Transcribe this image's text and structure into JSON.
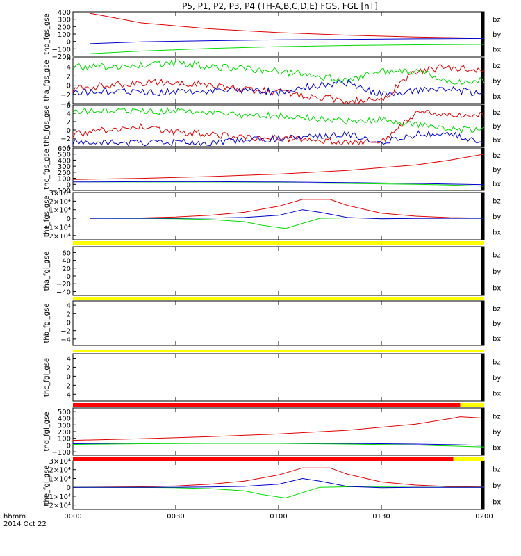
{
  "title": "P5, P1, P2, P3, P4 (TH-A,B,C,D,E) FGS, FGL [nT]",
  "colors": {
    "bz": "#e00000",
    "by": "#00dd00",
    "bx": "#0000cc",
    "flag_yellow": "#ffff00",
    "flag_red": "#ff0000"
  },
  "legend": [
    "bz",
    "by",
    "bx"
  ],
  "x_axis": {
    "label_line1": "hhmm",
    "label_line2": "2014 Oct 22",
    "ticks": [
      "0000",
      "0030",
      "0100",
      "0130",
      "0200"
    ],
    "tick_minutes": [
      0,
      30,
      60,
      90,
      120
    ],
    "range_minutes": [
      0,
      120
    ]
  },
  "chart_data": [
    {
      "type": "line",
      "ylabel": "thd_fgs_gse",
      "ylim": [
        -200,
        400
      ],
      "ticks": [
        "400",
        "300",
        "200",
        "100",
        "0",
        "−100",
        "−200"
      ],
      "tick_values": [
        400,
        300,
        200,
        100,
        0,
        -100,
        -200
      ],
      "series": [
        {
          "name": "bz",
          "x": [
            5,
            20,
            40,
            60,
            80,
            100,
            120
          ],
          "y": [
            380,
            250,
            170,
            120,
            85,
            60,
            45
          ]
        },
        {
          "name": "by",
          "x": [
            5,
            20,
            40,
            60,
            80,
            100,
            120
          ],
          "y": [
            -165,
            -130,
            -95,
            -70,
            -55,
            -45,
            -40
          ]
        },
        {
          "name": "bx",
          "x": [
            5,
            20,
            40,
            60,
            80,
            100,
            120
          ],
          "y": [
            -30,
            -5,
            10,
            22,
            28,
            35,
            40
          ]
        }
      ]
    },
    {
      "type": "line",
      "ylabel": "tha_fgs_gse",
      "ylim": [
        -4,
        6
      ],
      "ticks": [
        "6",
        "4",
        "2",
        "0",
        "−2",
        "−4"
      ],
      "tick_values": [
        6,
        4,
        2,
        0,
        -2,
        -4
      ],
      "series": [
        {
          "name": "bz",
          "x": [
            0,
            10,
            20,
            30,
            40,
            50,
            60,
            70,
            80,
            90,
            100,
            110,
            120
          ],
          "y": [
            -1,
            0,
            0.5,
            0.5,
            0,
            -1,
            -1.5,
            -2.5,
            -3.5,
            -3,
            3,
            4,
            3
          ]
        },
        {
          "name": "by",
          "x": [
            0,
            10,
            20,
            30,
            40,
            50,
            60,
            70,
            80,
            90,
            100,
            110,
            120
          ],
          "y": [
            4,
            4,
            4.5,
            5,
            4,
            3.5,
            3,
            2,
            1,
            3,
            3,
            1,
            1
          ]
        },
        {
          "name": "bx",
          "x": [
            0,
            10,
            20,
            30,
            40,
            50,
            60,
            70,
            80,
            90,
            100,
            110,
            120
          ],
          "y": [
            -1.5,
            -1.5,
            -1.5,
            -1.5,
            -1.5,
            -1,
            -1.5,
            0,
            0.5,
            -2,
            -1,
            -1,
            -2
          ]
        }
      ]
    },
    {
      "type": "line",
      "ylabel": "thb_fgs_gse",
      "ylim": [
        -4,
        6
      ],
      "ticks": [
        "6",
        "4",
        "2",
        "0",
        "−2",
        "−4"
      ],
      "tick_values": [
        6,
        4,
        2,
        0,
        -2,
        -4
      ],
      "series": [
        {
          "name": "bz",
          "x": [
            0,
            10,
            20,
            30,
            40,
            50,
            60,
            70,
            80,
            90,
            100,
            110,
            120
          ],
          "y": [
            -1,
            0,
            1,
            -0.5,
            -1,
            -2,
            -2,
            -2.5,
            -3,
            -3,
            4,
            4,
            3.5
          ]
        },
        {
          "name": "by",
          "x": [
            0,
            10,
            20,
            30,
            40,
            50,
            60,
            70,
            80,
            90,
            100,
            110,
            120
          ],
          "y": [
            4.5,
            4.5,
            4.5,
            4.5,
            4,
            3.5,
            3.5,
            3,
            2,
            2.5,
            1.5,
            0,
            0
          ]
        },
        {
          "name": "bx",
          "x": [
            0,
            10,
            20,
            30,
            40,
            50,
            60,
            70,
            80,
            90,
            100,
            110,
            120
          ],
          "y": [
            -3,
            -3,
            -3,
            -3,
            -3,
            -2.5,
            -2,
            -1.5,
            -1,
            -3,
            -1,
            -1,
            -3
          ]
        }
      ]
    },
    {
      "type": "line",
      "ylabel": "thc_fgs_gse",
      "ylim": [
        -100,
        600
      ],
      "ticks": [
        "600",
        "500",
        "400",
        "300",
        "200",
        "100",
        "0",
        "−100"
      ],
      "tick_values": [
        600,
        500,
        400,
        300,
        200,
        100,
        0,
        -100
      ],
      "series": [
        {
          "name": "bz",
          "x": [
            0,
            20,
            40,
            60,
            80,
            100,
            110,
            120
          ],
          "y": [
            80,
            100,
            130,
            170,
            230,
            320,
            400,
            500
          ]
        },
        {
          "name": "by",
          "x": [
            0,
            20,
            40,
            60,
            80,
            100,
            110,
            120
          ],
          "y": [
            20,
            25,
            25,
            25,
            15,
            0,
            -10,
            -30
          ]
        },
        {
          "name": "bx",
          "x": [
            0,
            20,
            40,
            60,
            80,
            100,
            110,
            120
          ],
          "y": [
            40,
            45,
            45,
            40,
            30,
            15,
            5,
            -5
          ]
        }
      ]
    },
    {
      "type": "line",
      "ylabel": "the_fgs_gse",
      "ylim": [
        -25000,
        30000
      ],
      "ticks": [
        "3×10⁴",
        "2×10⁴",
        "1×10⁴",
        "0",
        "−1×10⁴",
        "−2×10⁴"
      ],
      "tick_values": [
        30000,
        20000,
        10000,
        0,
        -10000,
        -20000
      ],
      "series": [
        {
          "name": "bz",
          "x": [
            5,
            20,
            30,
            40,
            50,
            60,
            67,
            75,
            80,
            90,
            100,
            110,
            120
          ],
          "y": [
            0,
            500,
            1500,
            3500,
            7000,
            14000,
            22000,
            22000,
            15000,
            6000,
            2500,
            800,
            300
          ]
        },
        {
          "name": "by",
          "x": [
            5,
            20,
            30,
            40,
            50,
            55,
            62,
            67,
            72,
            80,
            90,
            100,
            120
          ],
          "y": [
            0,
            -200,
            -500,
            -1500,
            -4000,
            -8000,
            -12000,
            -6000,
            0,
            500,
            300,
            100,
            0
          ]
        },
        {
          "name": "bx",
          "x": [
            5,
            20,
            30,
            40,
            50,
            60,
            67,
            72,
            80,
            90,
            100,
            120
          ],
          "y": [
            0,
            0,
            100,
            300,
            1000,
            3500,
            10000,
            7000,
            1000,
            -500,
            -100,
            0
          ]
        }
      ]
    },
    {
      "type": "line",
      "ylabel": "tha_fgl_gse",
      "ylim": [
        -50,
        75
      ],
      "ticks": [
        "60",
        "40",
        "20",
        "0",
        "−20",
        "−40"
      ],
      "tick_values": [
        60,
        40,
        20,
        0,
        -20,
        -40
      ],
      "series": []
    },
    {
      "type": "line",
      "ylabel": "thb_fgl_gse",
      "ylim": [
        -5.5,
        5
      ],
      "ticks": [
        "4",
        "2",
        "0",
        "−2",
        "−4"
      ],
      "tick_values": [
        4,
        2,
        0,
        -2,
        -4
      ],
      "series": []
    },
    {
      "type": "line",
      "ylabel": "thc_fgl_gse",
      "ylim": [
        -5.5,
        5
      ],
      "ticks": [
        "4",
        "2",
        "0",
        "−2",
        "−4"
      ],
      "tick_values": [
        4,
        2,
        0,
        -2,
        -4
      ],
      "series": []
    },
    {
      "type": "line",
      "ylabel": "thd_fgl_gse",
      "ylim": [
        -150,
        550
      ],
      "ticks": [
        "500",
        "400",
        "300",
        "200",
        "100",
        "0",
        "−100"
      ],
      "tick_values": [
        500,
        400,
        300,
        200,
        100,
        0,
        -100
      ],
      "series": [
        {
          "name": "bz",
          "x": [
            0,
            20,
            40,
            60,
            80,
            100,
            111,
            113,
            120
          ],
          "y": [
            70,
            95,
            125,
            165,
            220,
            310,
            400,
            420,
            400
          ]
        },
        {
          "name": "by",
          "x": [
            0,
            20,
            40,
            60,
            80,
            100,
            111,
            120
          ],
          "y": [
            10,
            20,
            25,
            25,
            15,
            0,
            -15,
            -30
          ]
        },
        {
          "name": "bx",
          "x": [
            0,
            20,
            40,
            60,
            80,
            100,
            111,
            120
          ],
          "y": [
            20,
            30,
            30,
            30,
            25,
            15,
            5,
            -5
          ]
        }
      ]
    },
    {
      "type": "line",
      "ylabel": "the_fgl_gse",
      "ylim": [
        -25000,
        30000
      ],
      "ticks": [
        "3×10⁴",
        "2×10⁴",
        "1×10⁴",
        "0",
        "−1×10⁴",
        "−2×10⁴"
      ],
      "tick_values": [
        30000,
        20000,
        10000,
        0,
        -10000,
        -20000
      ],
      "series": [
        {
          "name": "bz",
          "x": [
            0,
            20,
            30,
            40,
            50,
            60,
            67,
            75,
            80,
            90,
            100,
            110,
            120
          ],
          "y": [
            0,
            500,
            1500,
            3500,
            7000,
            14000,
            22000,
            22000,
            15000,
            6000,
            2500,
            800,
            300
          ]
        },
        {
          "name": "by",
          "x": [
            0,
            20,
            30,
            40,
            50,
            55,
            62,
            67,
            72,
            80,
            90,
            100,
            120
          ],
          "y": [
            0,
            -200,
            -500,
            -1500,
            -4000,
            -8000,
            -12000,
            -6000,
            0,
            500,
            300,
            100,
            0
          ]
        },
        {
          "name": "bx",
          "x": [
            0,
            20,
            30,
            40,
            50,
            60,
            67,
            72,
            80,
            90,
            100,
            120
          ],
          "y": [
            0,
            0,
            100,
            300,
            1000,
            3500,
            10000,
            7000,
            1000,
            -500,
            -100,
            0
          ]
        }
      ]
    }
  ],
  "flag_bars": [
    {
      "below_panel": 4,
      "segments": [
        {
          "from": 0,
          "to": 120,
          "color": "yellow"
        }
      ]
    },
    {
      "below_panel": 5,
      "segments": [
        {
          "from": 0,
          "to": 120,
          "color": "yellow"
        }
      ]
    },
    {
      "below_panel": 6,
      "segments": [
        {
          "from": 0,
          "to": 120,
          "color": "yellow"
        }
      ]
    },
    {
      "below_panel": 7,
      "segments": [
        {
          "from": 0,
          "to": 113,
          "color": "red"
        },
        {
          "from": 113,
          "to": 120,
          "color": "yellow"
        }
      ]
    },
    {
      "below_panel": 8,
      "segments": [
        {
          "from": 0,
          "to": 111,
          "color": "red"
        },
        {
          "from": 111,
          "to": 120,
          "color": "yellow"
        }
      ]
    }
  ]
}
